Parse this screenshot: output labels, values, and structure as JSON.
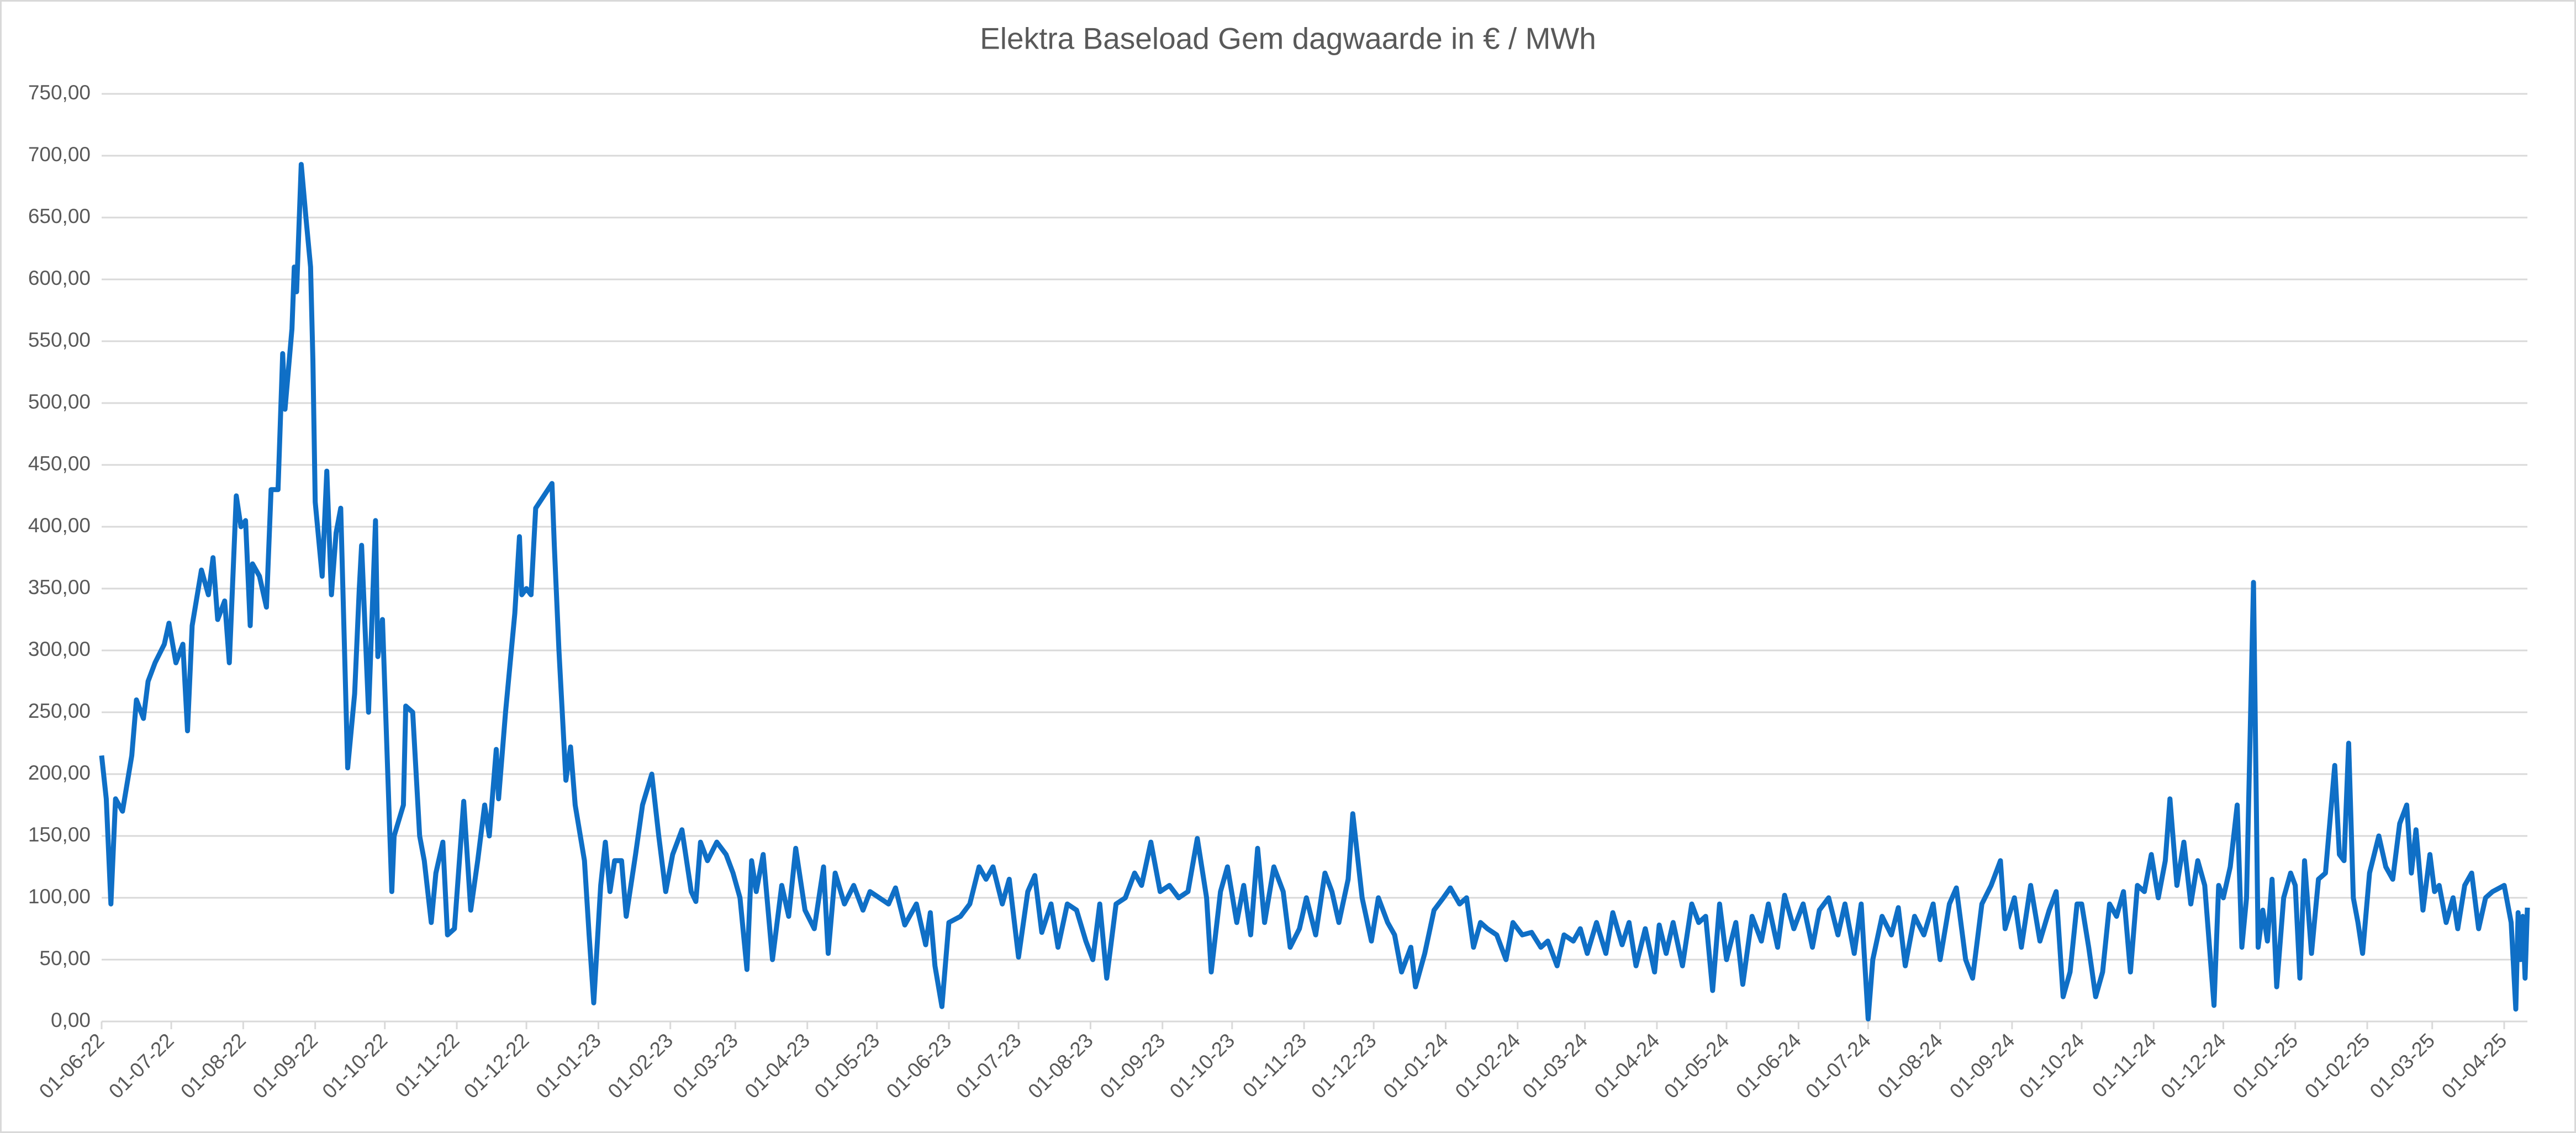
{
  "chart_data": {
    "type": "line",
    "title": "Elektra Baseload Gem dagwaarde in € / MWh",
    "color": "#0f6fc6",
    "grid": true,
    "ylim": [
      0,
      750
    ],
    "yticks": [
      {
        "value": 0,
        "label": "0,00"
      },
      {
        "value": 50,
        "label": "50,00"
      },
      {
        "value": 100,
        "label": "100,00"
      },
      {
        "value": 150,
        "label": "150,00"
      },
      {
        "value": 200,
        "label": "200,00"
      },
      {
        "value": 250,
        "label": "250,00"
      },
      {
        "value": 300,
        "label": "300,00"
      },
      {
        "value": 350,
        "label": "350,00"
      },
      {
        "value": 400,
        "label": "400,00"
      },
      {
        "value": 450,
        "label": "450,00"
      },
      {
        "value": 500,
        "label": "500,00"
      },
      {
        "value": 550,
        "label": "550,00"
      },
      {
        "value": 600,
        "label": "600,00"
      },
      {
        "value": 650,
        "label": "650,00"
      },
      {
        "value": 700,
        "label": "700,00"
      },
      {
        "value": 750,
        "label": "750,00"
      }
    ],
    "xlim": [
      "01-06-22",
      "11-04-25"
    ],
    "xticks": [
      "01-06-22",
      "01-07-22",
      "01-08-22",
      "01-09-22",
      "01-10-22",
      "01-11-22",
      "01-12-22",
      "01-01-23",
      "01-02-23",
      "01-03-23",
      "01-04-23",
      "01-05-23",
      "01-06-23",
      "01-07-23",
      "01-08-23",
      "01-09-23",
      "01-10-23",
      "01-11-23",
      "01-12-23",
      "01-01-24",
      "01-02-24",
      "01-03-24",
      "01-04-24",
      "01-05-24",
      "01-06-24",
      "01-07-24",
      "01-08-24",
      "01-09-24",
      "01-10-24",
      "01-11-24",
      "01-12-24",
      "01-01-25",
      "01-02-25",
      "01-03-25",
      "01-04-25"
    ],
    "x": [
      "01-06-22",
      "03-06-22",
      "05-06-22",
      "07-06-22",
      "10-06-22",
      "14-06-22",
      "16-06-22",
      "19-06-22",
      "21-06-22",
      "24-06-22",
      "28-06-22",
      "30-06-22",
      "03-07-22",
      "06-07-22",
      "08-07-22",
      "10-07-22",
      "14-07-22",
      "17-07-22",
      "19-07-22",
      "21-07-22",
      "24-07-22",
      "26-07-22",
      "29-07-22",
      "31-07-22",
      "02-08-22",
      "04-08-22",
      "05-08-22",
      "08-08-22",
      "11-08-22",
      "13-08-22",
      "16-08-22",
      "18-08-22",
      "19-08-22",
      "22-08-22",
      "23-08-22",
      "24-08-22",
      "26-08-22",
      "28-08-22",
      "30-08-22",
      "31-08-22",
      "01-09-22",
      "04-09-22",
      "06-09-22",
      "08-09-22",
      "10-09-22",
      "12-09-22",
      "15-09-22",
      "18-09-22",
      "20-09-22",
      "21-09-22",
      "24-09-22",
      "27-09-22",
      "28-09-22",
      "30-09-22",
      "04-10-22",
      "05-10-22",
      "09-10-22",
      "10-10-22",
      "13-10-22",
      "16-10-22",
      "18-10-22",
      "21-10-22",
      "23-10-22",
      "26-10-22",
      "28-10-22",
      "31-10-22",
      "04-11-22",
      "07-11-22",
      "10-11-22",
      "13-11-22",
      "15-11-22",
      "18-11-22",
      "19-11-22",
      "22-11-22",
      "26-11-22",
      "28-11-22",
      "29-11-22",
      "01-12-22",
      "03-12-22",
      "05-12-22",
      "12-12-22",
      "13-12-22",
      "15-12-22",
      "18-12-22",
      "20-12-22",
      "22-12-22",
      "26-12-22",
      "28-12-22",
      "30-12-22",
      "02-01-23",
      "04-01-23",
      "06-01-23",
      "08-01-23",
      "11-01-23",
      "13-01-23",
      "17-01-23",
      "20-01-23",
      "24-01-23",
      "27-01-23",
      "30-01-23",
      "02-02-23",
      "06-02-23",
      "10-02-23",
      "12-02-23",
      "14-02-23",
      "17-02-23",
      "21-02-23",
      "25-02-23",
      "28-02-23",
      "03-03-23",
      "06-03-23",
      "08-03-23",
      "10-03-23",
      "13-03-23",
      "17-03-23",
      "21-03-23",
      "24-03-23",
      "27-03-23",
      "31-03-23",
      "04-04-23",
      "08-04-23",
      "10-04-23",
      "13-04-23",
      "17-04-23",
      "21-04-23",
      "25-04-23",
      "28-04-23",
      "02-05-23",
      "06-05-23",
      "09-05-23",
      "13-05-23",
      "18-05-23",
      "22-05-23",
      "24-05-23",
      "26-05-23",
      "29-05-23",
      "01-06-23",
      "06-06-23",
      "10-06-23",
      "14-06-23",
      "17-06-23",
      "20-06-23",
      "24-06-23",
      "27-06-23",
      "01-07-23",
      "05-07-23",
      "08-07-23",
      "11-07-23",
      "15-07-23",
      "18-07-23",
      "22-07-23",
      "26-07-23",
      "30-07-23",
      "02-08-23",
      "05-08-23",
      "08-08-23",
      "12-08-23",
      "16-08-23",
      "20-08-23",
      "23-08-23",
      "27-08-23",
      "31-08-23",
      "04-09-23",
      "08-09-23",
      "12-09-23",
      "16-09-23",
      "20-09-23",
      "22-09-23",
      "26-09-23",
      "29-09-23",
      "03-10-23",
      "06-10-23",
      "09-10-23",
      "12-10-23",
      "15-10-23",
      "19-10-23",
      "23-10-23",
      "26-10-23",
      "30-10-23",
      "02-11-23",
      "06-11-23",
      "10-11-23",
      "13-11-23",
      "16-11-23",
      "20-11-23",
      "22-11-23",
      "26-11-23",
      "30-11-23",
      "03-12-23",
      "07-12-23",
      "10-12-23",
      "13-12-23",
      "17-12-23",
      "19-12-23",
      "23-12-23",
      "27-12-23",
      "31-12-23",
      "03-01-24",
      "07-01-24",
      "10-01-24",
      "13-01-24",
      "16-01-24",
      "19-01-24",
      "23-01-24",
      "27-01-24",
      "30-01-24",
      "03-02-24",
      "07-02-24",
      "11-02-24",
      "14-02-24",
      "18-02-24",
      "21-02-24",
      "25-02-24",
      "28-02-24",
      "02-03-24",
      "06-03-24",
      "10-03-24",
      "13-03-24",
      "17-03-24",
      "20-03-24",
      "23-03-24",
      "27-03-24",
      "31-03-24",
      "02-04-24",
      "05-04-24",
      "08-04-24",
      "12-04-24",
      "16-04-24",
      "19-04-24",
      "22-04-24",
      "25-04-24",
      "28-04-24",
      "01-05-24",
      "05-05-24",
      "08-05-24",
      "12-05-24",
      "16-05-24",
      "19-05-24",
      "23-05-24",
      "26-05-24",
      "30-05-24",
      "03-06-24",
      "07-06-24",
      "10-06-24",
      "14-06-24",
      "18-06-24",
      "21-06-24",
      "25-06-24",
      "28-06-24",
      "01-07-24",
      "03-07-24",
      "07-07-24",
      "11-07-24",
      "14-07-24",
      "17-07-24",
      "21-07-24",
      "25-07-24",
      "29-07-24",
      "01-08-24",
      "05-08-24",
      "08-08-24",
      "12-08-24",
      "15-08-24",
      "19-08-24",
      "23-08-24",
      "27-08-24",
      "29-08-24",
      "02-09-24",
      "05-09-24",
      "09-09-24",
      "13-09-24",
      "17-09-24",
      "20-09-24",
      "23-09-24",
      "26-09-24",
      "29-09-24",
      "01-10-24",
      "04-10-24",
      "07-10-24",
      "10-10-24",
      "13-10-24",
      "16-10-24",
      "19-10-24",
      "22-10-24",
      "25-10-24",
      "28-10-24",
      "31-10-24",
      "03-11-24",
      "06-11-24",
      "08-11-24",
      "11-11-24",
      "14-11-24",
      "17-11-24",
      "20-11-24",
      "23-11-24",
      "27-11-24",
      "29-11-24",
      "01-12-24",
      "04-12-24",
      "07-12-24",
      "09-12-24",
      "11-12-24",
      "14-12-24",
      "16-12-24",
      "18-12-24",
      "20-12-24",
      "22-12-24",
      "24-12-24",
      "27-12-24",
      "30-12-24",
      "01-01-25",
      "03-01-25",
      "05-01-25",
      "08-01-25",
      "11-01-25",
      "14-01-25",
      "18-01-25",
      "20-01-25",
      "22-01-25",
      "24-01-25",
      "26-01-25",
      "28-01-25",
      "30-01-25",
      "02-02-25",
      "06-02-25",
      "09-02-25",
      "12-02-25",
      "15-02-25",
      "18-02-25",
      "20-02-25",
      "22-02-25",
      "25-02-25",
      "28-02-25",
      "02-03-25",
      "04-03-25",
      "07-03-25",
      "10-03-25",
      "12-03-25",
      "15-03-25",
      "18-03-25",
      "21-03-25",
      "24-03-25",
      "27-03-25",
      "01-04-25",
      "04-04-25",
      "06-04-25",
      "07-04-25",
      "08-04-25",
      "09-04-25",
      "10-04-25",
      "11-04-25"
    ],
    "values": [
      215,
      180,
      95,
      180,
      170,
      215,
      260,
      245,
      275,
      290,
      305,
      322,
      290,
      305,
      235,
      320,
      365,
      345,
      375,
      325,
      340,
      290,
      425,
      400,
      405,
      320,
      370,
      360,
      335,
      430,
      430,
      540,
      495,
      560,
      610,
      590,
      693,
      650,
      610,
      535,
      420,
      360,
      445,
      345,
      395,
      415,
      205,
      265,
      350,
      385,
      250,
      405,
      295,
      325,
      105,
      150,
      175,
      255,
      250,
      150,
      130,
      80,
      120,
      145,
      70,
      75,
      178,
      90,
      130,
      175,
      150,
      220,
      180,
      250,
      330,
      392,
      345,
      350,
      345,
      415,
      435,
      385,
      300,
      195,
      222,
      175,
      130,
      70,
      15,
      110,
      145,
      105,
      130,
      130,
      85,
      135,
      175,
      200,
      150,
      105,
      135,
      155,
      105,
      97,
      145,
      130,
      145,
      135,
      120,
      100,
      42,
      130,
      105,
      135,
      50,
      110,
      85,
      140,
      90,
      75,
      125,
      55,
      120,
      95,
      110,
      90,
      105,
      100,
      95,
      108,
      78,
      95,
      62,
      88,
      45,
      12,
      80,
      85,
      95,
      125,
      115,
      125,
      95,
      115,
      52,
      105,
      118,
      72,
      95,
      60,
      95,
      90,
      65,
      50,
      95,
      35,
      95,
      100,
      120,
      110,
      145,
      105,
      110,
      100,
      105,
      148,
      100,
      40,
      105,
      125,
      80,
      110,
      70,
      140,
      80,
      125,
      105,
      60,
      75,
      100,
      70,
      120,
      105,
      80,
      115,
      168,
      100,
      65,
      100,
      80,
      70,
      40,
      60,
      28,
      55,
      90,
      100,
      108,
      95,
      100,
      60,
      80,
      75,
      70,
      50,
      80,
      70,
      72,
      60,
      65,
      45,
      70,
      65,
      75,
      55,
      80,
      55,
      88,
      62,
      80,
      45,
      75,
      40,
      78,
      55,
      80,
      45,
      95,
      80,
      85,
      25,
      95,
      50,
      80,
      30,
      85,
      65,
      95,
      60,
      102,
      75,
      95,
      60,
      90,
      100,
      70,
      95,
      55,
      95,
      2,
      50,
      85,
      70,
      92,
      45,
      85,
      70,
      95,
      50,
      95,
      108,
      50,
      35,
      95,
      110,
      130,
      75,
      100,
      60,
      110,
      65,
      90,
      105,
      20,
      40,
      95,
      95,
      60,
      20,
      40,
      95,
      85,
      105,
      40,
      110,
      105,
      135,
      100,
      130,
      180,
      110,
      145,
      95,
      130,
      110,
      13,
      110,
      100,
      125,
      175,
      60,
      100,
      355,
      60,
      90,
      65,
      115,
      28,
      100,
      120,
      110,
      35,
      130,
      55,
      115,
      120,
      207,
      135,
      130,
      225,
      100,
      80,
      55,
      120,
      150,
      125,
      115,
      160,
      175,
      120,
      155,
      90,
      135,
      105,
      110,
      80,
      100,
      75,
      110,
      120,
      75,
      100,
      105,
      110,
      80,
      10,
      88,
      50,
      85,
      35,
      92
    ]
  }
}
